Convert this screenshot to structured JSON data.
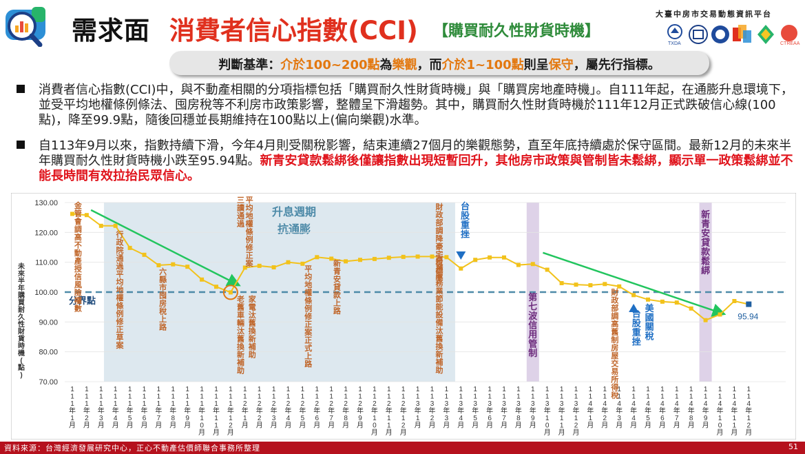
{
  "header": {
    "title_main": "需求面",
    "title_sub": "消費者信心指數(CCI)",
    "title_tag": "【購買耐久性財貨時機】",
    "platform": "大臺中房市交易動態資訊平台"
  },
  "criteria": {
    "label": "判斷基準：",
    "p1": "介於100~200點",
    "p2": "為",
    "p3": "樂觀",
    "p4": "，而",
    "p5": "介於1~100點",
    "p6": "則呈",
    "p7": "保守",
    "p8": "，屬先行指標。"
  },
  "bullets": [
    {
      "text": "消費者信心指數(CCI)中，與不動產相關的分項指標包括「購買耐久性財貨時機」與「購買房地產時機」。自111年起，在通膨升息環境下，並受平均地權條例條法、囤房稅等不利房市政策影響，整體呈下滑趨勢。其中，購買耐久性財貨時機於111年12月正式跌破信心線(100點)，降至99.9點，隨後回穩並長期維持在100點以上(偏向樂觀)水準。",
      "highlight": ""
    },
    {
      "text": "自113年9月以來，指數持續下滑，今年4月則受關稅影響，結束連續27個月的樂觀態勢，直至年底持續處於保守區間。最新12月的未來半年購買耐久性財貨時機小跌至95.94點。",
      "highlight": "新青安貸款鬆綁後僅讓指數出現短暫回升，其他房市政策與管制皆未鬆綁，顯示單一政策鬆綁並不能長時間有效拉抬民眾信心。"
    }
  ],
  "footer": {
    "source": "資料來源：台灣經濟發展研究中心，正心不動產估價師聯合事務所整理",
    "page": "51"
  },
  "colors": {
    "line": "#f2c21b",
    "marker": "#f2c21b",
    "baseline": "#4d8aa8",
    "arrow": "#22c55e",
    "annotation": "#c0662a",
    "blue_annotation": "#1f6fc4",
    "purple_annotation": "#6c2a7c",
    "shade": "#dde8ef",
    "purple_band": "#ded2e8",
    "last_point": "#1f5fa0",
    "title_red": "#e0301e"
  },
  "chart_data": {
    "type": "line",
    "ylabel": "未來半年購買耐久性財貨時機(點)",
    "ylim": [
      70,
      130
    ],
    "yticks": [
      "70.00",
      "80.00",
      "90.00",
      "100.00",
      "110.00",
      "120.00",
      "130.00"
    ],
    "baseline_label": "分界點",
    "baseline_value": 100,
    "categories": [
      "111年1月",
      "111年2月",
      "111年3月",
      "111年4月",
      "111年5月",
      "111年6月",
      "111年7月",
      "111年8月",
      "111年9月",
      "111年10月",
      "111年11月",
      "111年12月",
      "112年1月",
      "112年2月",
      "112年3月",
      "112年4月",
      "112年5月",
      "112年6月",
      "112年7月",
      "112年8月",
      "112年9月",
      "112年10月",
      "112年11月",
      "112年12月",
      "113年1月",
      "113年2月",
      "113年3月",
      "113年4月",
      "113年5月",
      "113年6月",
      "113年7月",
      "113年8月",
      "113年9月",
      "113年10月",
      "113年11月",
      "113年12月",
      "114年1月",
      "114年2月",
      "114年3月",
      "114年4月",
      "114年5月",
      "114年6月",
      "114年7月",
      "114年8月",
      "114年9月",
      "114年10月",
      "114年11月",
      "114年12月"
    ],
    "values": [
      126.2,
      125.8,
      122.2,
      122.2,
      114.8,
      112.5,
      109.0,
      109.3,
      108.5,
      104.2,
      101.8,
      99.9,
      108.2,
      108.8,
      108.3,
      110.0,
      109.5,
      111.7,
      111.2,
      110.3,
      110.8,
      111.1,
      111.5,
      111.8,
      111.9,
      111.9,
      111.7,
      107.9,
      110.8,
      111.6,
      111.6,
      109.1,
      109.4,
      107.5,
      103.0,
      102.5,
      102.3,
      102.7,
      101.9,
      99.0,
      97.5,
      96.8,
      96.5,
      94.5,
      90.6,
      92.5,
      97.0,
      95.94
    ],
    "last_value_label": "95.94",
    "shaded_period_label_1": "升息週期",
    "shaded_period_label_2": "抗通膨",
    "annotations": [
      {
        "text": "金管會調高不動產授信風險權數",
        "i": 0,
        "color": "annotation"
      },
      {
        "text": "行政院通過平均地權條例修正草案",
        "i": 3,
        "color": "annotation"
      },
      {
        "text": "六縣市囤房稅上路",
        "i": 6,
        "color": "annotation"
      },
      {
        "text": "平均地權條例修正案",
        "i": 12,
        "color": "annotation"
      },
      {
        "text": "三讀通過",
        "i": 11,
        "color": "annotation"
      },
      {
        "text": "家電汰舊換新補助",
        "i": 12,
        "color": "annotation"
      },
      {
        "text": "老舊車輛汰舊換新補助",
        "i": 11,
        "color": "annotation"
      },
      {
        "text": "新青安貸款上路",
        "i": 18,
        "color": "annotation"
      },
      {
        "text": "平均地權條例修正案正式上路",
        "i": 16,
        "color": "annotation"
      },
      {
        "text": "財政部調降豪宅稅標準",
        "i": 25,
        "color": "annotation"
      },
      {
        "text": "商業服務業節能設備汰舊換新補助",
        "i": 25,
        "color": "annotation"
      },
      {
        "text": "台股重挫",
        "i": 27,
        "color": "blue_annotation"
      },
      {
        "text": "第七波信用管制",
        "i": 32,
        "color": "purple_annotation"
      },
      {
        "text": "財政部調高舊制房屋交易所得稅",
        "i": 37,
        "color": "annotation"
      },
      {
        "text": "台股重挫",
        "i": 39,
        "color": "blue_annotation"
      },
      {
        "text": "美國關稅",
        "i": 40,
        "color": "blue_annotation"
      },
      {
        "text": "新青安貸款鬆綁",
        "i": 44,
        "color": "purple_annotation"
      }
    ]
  }
}
